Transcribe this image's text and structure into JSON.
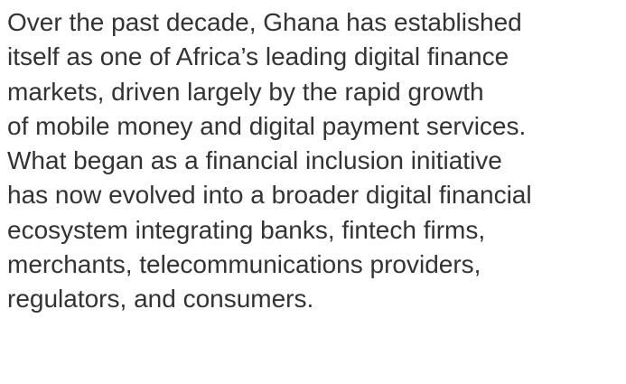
{
  "paragraph": {
    "lines": [
      "Over the past decade, Ghana has established",
      "itself as one of Africa’s leading digital finance",
      "markets, driven largely by the rapid growth",
      "of mobile money and digital payment services.",
      "What began as a financial inclusion initiative",
      "has now evolved into a broader digital financial",
      "ecosystem integrating banks, fintech firms,",
      "merchants, telecommunications providers,",
      "regulators, and consumers."
    ]
  }
}
